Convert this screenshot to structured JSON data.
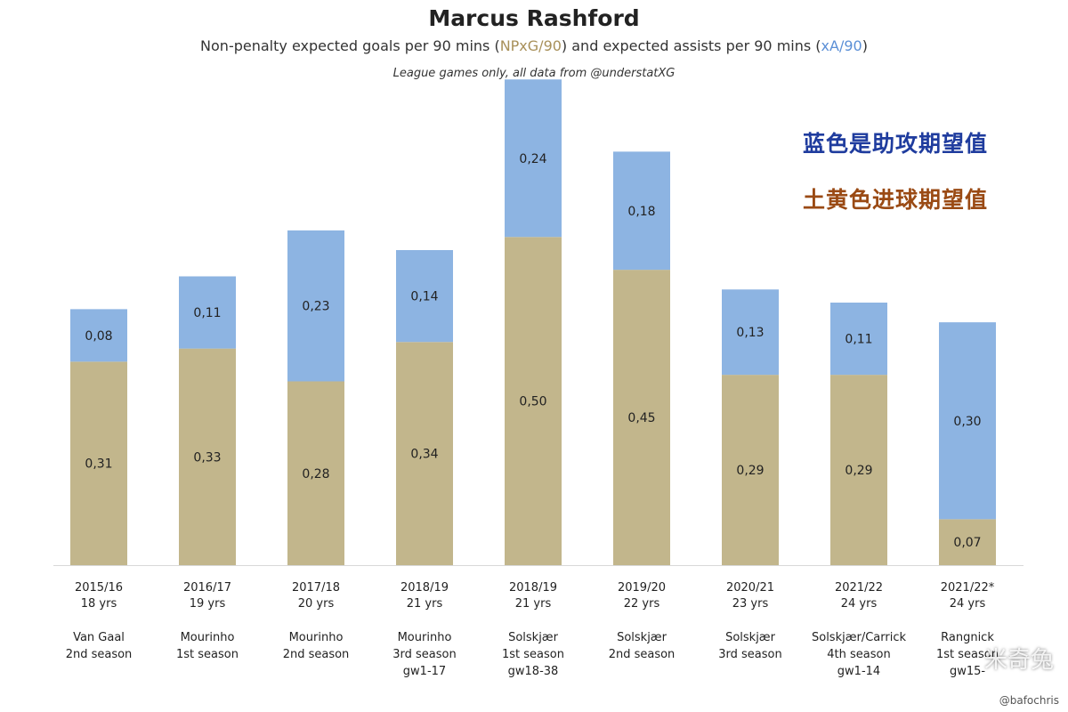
{
  "header": {
    "title": "Marcus Rashford",
    "subtitle_pre": "Non-penalty expected goals per 90 mins (",
    "subtitle_npxg": "NPxG/90",
    "subtitle_mid": ") and expected assists per 90 mins (",
    "subtitle_xa": "xA/90",
    "subtitle_post": ")",
    "note": "League games only, all data from @understatXG"
  },
  "legend": {
    "blue_text": "蓝色是助攻期望值",
    "tan_text": "土黄色进球期望值"
  },
  "watermark": "米奇兔",
  "credit": "@bafochris",
  "colors": {
    "npxg": "#c2b68c",
    "xa": "#8db4e2",
    "text": "#222222"
  },
  "chart_data": {
    "type": "bar",
    "stacked": true,
    "title": "Marcus Rashford",
    "ylim": [
      0,
      0.8
    ],
    "grid": false,
    "categories": [
      {
        "season": "2015/16",
        "age": "18 yrs",
        "manager": [
          "Van Gaal",
          "2nd season"
        ]
      },
      {
        "season": "2016/17",
        "age": "19 yrs",
        "manager": [
          "Mourinho",
          "1st season"
        ]
      },
      {
        "season": "2017/18",
        "age": "20 yrs",
        "manager": [
          "Mourinho",
          "2nd season"
        ]
      },
      {
        "season": "2018/19",
        "age": "21 yrs",
        "manager": [
          "Mourinho",
          "3rd season",
          "gw1-17"
        ]
      },
      {
        "season": "2018/19",
        "age": "21 yrs",
        "manager": [
          "Solskjær",
          "1st season",
          "gw18-38"
        ]
      },
      {
        "season": "2019/20",
        "age": "22 yrs",
        "manager": [
          "Solskjær",
          "2nd season"
        ]
      },
      {
        "season": "2020/21",
        "age": "23 yrs",
        "manager": [
          "Solskjær",
          "3rd season"
        ]
      },
      {
        "season": "2021/22",
        "age": "24 yrs",
        "manager": [
          "Solskjær/Carrick",
          "4th season",
          "gw1-14"
        ]
      },
      {
        "season": "2021/22*",
        "age": "24 yrs",
        "manager": [
          "Rangnick",
          "1st season",
          "gw15-"
        ]
      }
    ],
    "series": [
      {
        "name": "NPxG/90",
        "values": [
          0.31,
          0.33,
          0.28,
          0.34,
          0.5,
          0.45,
          0.29,
          0.29,
          0.07
        ],
        "labels": [
          "0,31",
          "0,33",
          "0,28",
          "0,34",
          "0,50",
          "0,45",
          "0,29",
          "0,29",
          "0,07"
        ]
      },
      {
        "name": "xA/90",
        "values": [
          0.08,
          0.11,
          0.23,
          0.14,
          0.24,
          0.18,
          0.13,
          0.11,
          0.3
        ],
        "labels": [
          "0,08",
          "0,11",
          "0,23",
          "0,14",
          "0,24",
          "0,18",
          "0,13",
          "0,11",
          "0,30"
        ]
      }
    ]
  }
}
